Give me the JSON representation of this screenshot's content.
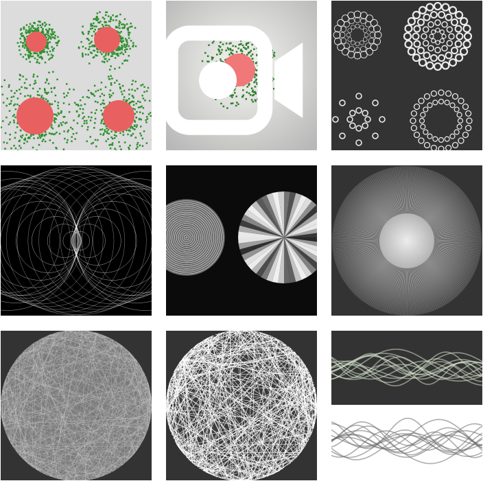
{
  "feed": {
    "posts": [
      {
        "id": 1,
        "icon": "",
        "colors": {
          "bg": "#dcdcdc",
          "accent": "#e86060",
          "fill": "#2f8f2f"
        }
      },
      {
        "id": 2,
        "icon": "video-icon",
        "colors": {
          "bg": "#f0f0f0",
          "accent": "#f07878",
          "fill": "#2e7d2e"
        }
      },
      {
        "id": 3,
        "icon": "",
        "colors": {
          "bg": "#333333",
          "accent": "#ffffff"
        }
      },
      {
        "id": 4,
        "icon": "",
        "colors": {
          "bg": "#000000",
          "accent": "#ffffff"
        }
      },
      {
        "id": 5,
        "icon": "",
        "colors": {
          "bg": "#0b0b0b",
          "accent": "#cccccc"
        }
      },
      {
        "id": 6,
        "icon": "",
        "colors": {
          "bg": "#333333",
          "accent": "#dddddd"
        }
      },
      {
        "id": 7,
        "icon": "",
        "colors": {
          "bg": "#333333",
          "accent": "#cfcfcf"
        }
      },
      {
        "id": 8,
        "icon": "",
        "colors": {
          "bg": "#333333",
          "accent": "#ffffff"
        }
      },
      {
        "id": 9,
        "icon": "",
        "colors": {
          "bg": "#333333",
          "accent": "#e6e6e6"
        }
      }
    ]
  }
}
